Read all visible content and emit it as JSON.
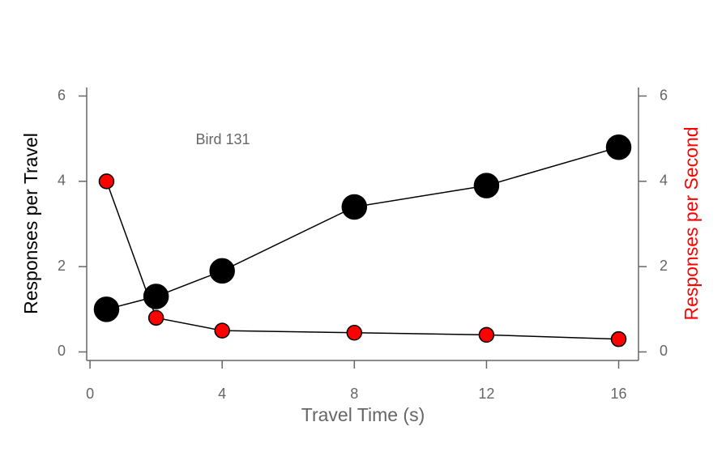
{
  "chart_data": {
    "type": "line",
    "xlabel": "Travel Time (s)",
    "ylabel": "Responses per Travel",
    "y2label": "Responses per Second",
    "annotation": "Bird 131",
    "x": [
      0.5,
      2,
      4,
      8,
      12,
      16
    ],
    "series": [
      {
        "color": "#000000",
        "values": [
          1.0,
          1.3,
          1.9,
          3.4,
          3.9,
          4.8
        ]
      },
      {
        "color": "#ff0000",
        "axis": "y2",
        "values": [
          4.0,
          0.8,
          0.5,
          0.45,
          0.4,
          0.3
        ]
      }
    ],
    "xlim": [
      -0.1,
      16.6
    ],
    "xticks": [
      0,
      4,
      8,
      12,
      16
    ],
    "ylim": [
      -0.2,
      6.2
    ],
    "yticks": [
      0,
      2,
      4,
      6
    ],
    "y2lim": [
      -0.2,
      6.2
    ],
    "y2ticks": [
      0,
      2,
      4,
      6
    ]
  }
}
